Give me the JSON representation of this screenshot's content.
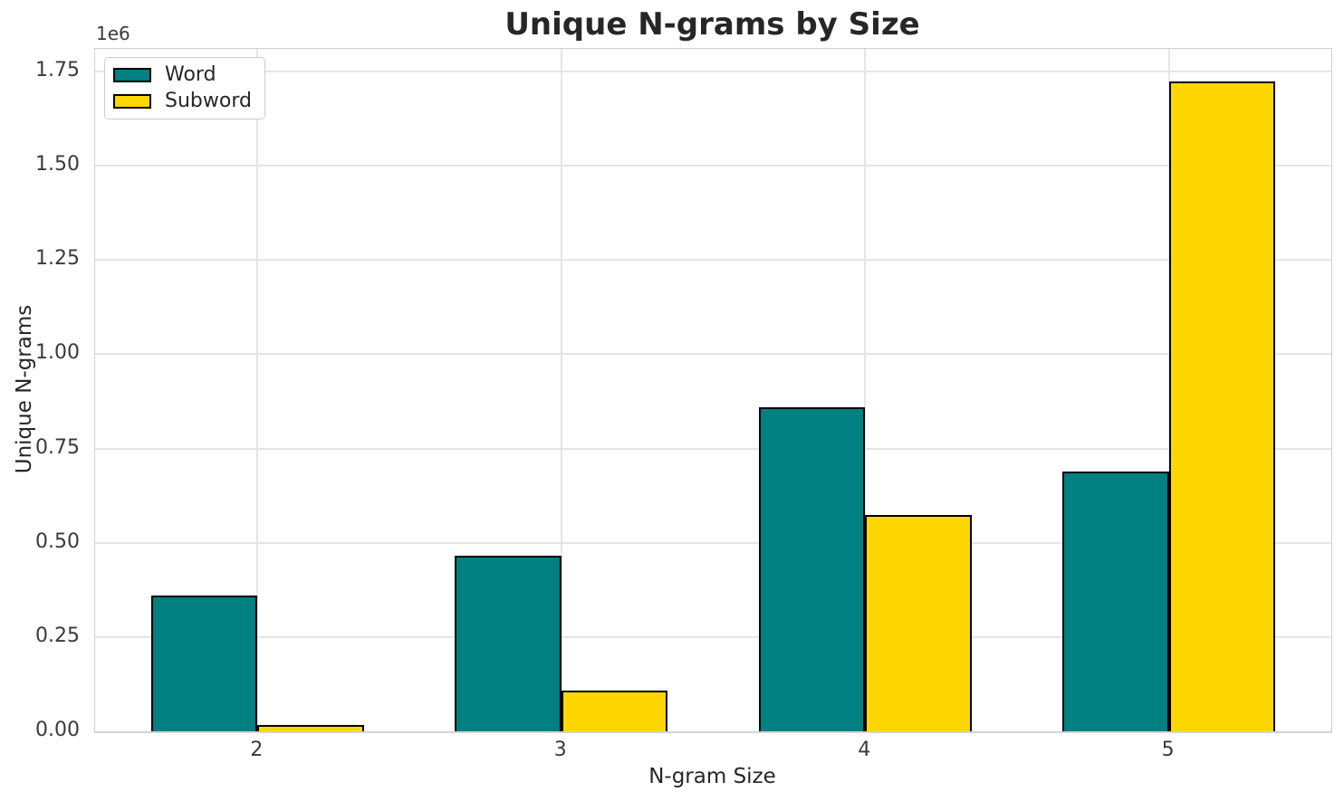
{
  "chart_data": {
    "type": "bar",
    "title": "Unique N-grams by Size",
    "xlabel": "N-gram Size",
    "ylabel": "Unique N-grams",
    "offset_text": "1e6",
    "categories": [
      "2",
      "3",
      "4",
      "5"
    ],
    "series": [
      {
        "name": "Word",
        "color": "#008080",
        "values": [
          360000,
          465000,
          860000,
          688000
        ]
      },
      {
        "name": "Subword",
        "color": "#FFD700",
        "values": [
          16000,
          108000,
          573000,
          1723000
        ]
      }
    ],
    "bar_edge_color": "#000000",
    "bar_width": 0.35,
    "ylim": [
      0,
      1810000
    ],
    "xlim": [
      -0.535,
      3.535
    ],
    "yticks": [
      0,
      250000,
      500000,
      750000,
      1000000,
      1250000,
      1500000,
      1750000
    ],
    "ytick_labels": [
      "0.00",
      "0.25",
      "0.50",
      "0.75",
      "1.00",
      "1.25",
      "1.50",
      "1.75"
    ],
    "grid": true,
    "legend_position": "upper left"
  }
}
